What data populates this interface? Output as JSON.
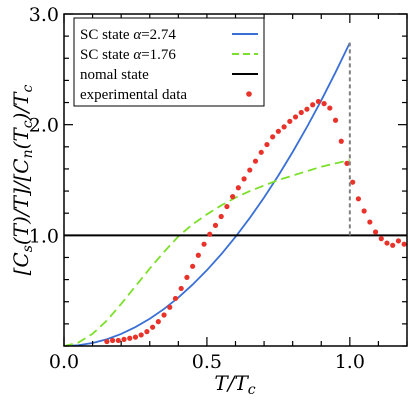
{
  "chart_data": {
    "type": "line",
    "xlabel": "T/T_c",
    "ylabel": "[C_s(T)/T]/[C_n(T_c)/T_c]",
    "xlim": [
      0,
      1.2
    ],
    "ylim": [
      0,
      3.0
    ],
    "x_ticks": [
      {
        "value": 0.0,
        "label": "0.0"
      },
      {
        "value": 0.5,
        "label": "0.5"
      },
      {
        "value": 1.0,
        "label": "1.0"
      }
    ],
    "y_ticks": [
      {
        "value": 1.0,
        "label": "1.0"
      },
      {
        "value": 2.0,
        "label": "2.0"
      },
      {
        "value": 3.0,
        "label": "3.0"
      }
    ],
    "legend_position": "top-left",
    "series": [
      {
        "name": "SC state α=2.74",
        "label_prefix": "SC state ",
        "label_param": "α",
        "label_value": "=2.74",
        "color": "#3a6fd8",
        "style": "solid",
        "x": [
          0,
          0.05,
          0.1,
          0.15,
          0.2,
          0.25,
          0.3,
          0.35,
          0.4,
          0.45,
          0.5,
          0.55,
          0.6,
          0.65,
          0.7,
          0.75,
          0.8,
          0.85,
          0.9,
          0.95,
          1.0
        ],
        "y": [
          0,
          0.007,
          0.027,
          0.061,
          0.109,
          0.171,
          0.246,
          0.335,
          0.438,
          0.555,
          0.685,
          0.829,
          0.986,
          1.157,
          1.342,
          1.541,
          1.753,
          1.979,
          2.219,
          2.473,
          2.74
        ]
      },
      {
        "name": "SC state α=1.76",
        "label_prefix": "SC state ",
        "label_param": "α",
        "label_value": "=1.76",
        "color": "#7be02a",
        "style": "dashed",
        "x": [
          0,
          0.05,
          0.1,
          0.15,
          0.2,
          0.25,
          0.3,
          0.35,
          0.4,
          0.45,
          0.5,
          0.55,
          0.6,
          0.65,
          0.7,
          0.75,
          0.8,
          0.85,
          0.9,
          0.95,
          1.0
        ],
        "y": [
          0,
          0.03,
          0.11,
          0.23,
          0.38,
          0.54,
          0.7,
          0.85,
          0.99,
          1.1,
          1.19,
          1.27,
          1.34,
          1.4,
          1.45,
          1.5,
          1.54,
          1.58,
          1.62,
          1.65,
          1.68
        ]
      },
      {
        "name": "nomal state",
        "color": "#000000",
        "style": "solid",
        "x": [
          0,
          1.2
        ],
        "y": [
          1.0,
          1.0
        ]
      },
      {
        "name": "experimental data",
        "color": "#e8322a",
        "style": "markers",
        "x": [
          0.15,
          0.17,
          0.19,
          0.21,
          0.23,
          0.25,
          0.27,
          0.29,
          0.31,
          0.33,
          0.35,
          0.37,
          0.39,
          0.41,
          0.43,
          0.45,
          0.47,
          0.49,
          0.51,
          0.53,
          0.55,
          0.57,
          0.59,
          0.61,
          0.63,
          0.65,
          0.67,
          0.69,
          0.71,
          0.73,
          0.75,
          0.77,
          0.79,
          0.81,
          0.83,
          0.85,
          0.87,
          0.89,
          0.91,
          0.93,
          0.95,
          0.97,
          0.99,
          1.01,
          1.03,
          1.05,
          1.07,
          1.09,
          1.11,
          1.13,
          1.15,
          1.17,
          1.19
        ],
        "y": [
          0.04,
          0.05,
          0.05,
          0.06,
          0.07,
          0.08,
          0.1,
          0.13,
          0.17,
          0.22,
          0.28,
          0.35,
          0.43,
          0.52,
          0.62,
          0.72,
          0.82,
          0.92,
          1.01,
          1.09,
          1.17,
          1.26,
          1.35,
          1.43,
          1.51,
          1.59,
          1.67,
          1.75,
          1.82,
          1.89,
          1.94,
          1.98,
          2.03,
          2.07,
          2.11,
          2.14,
          2.18,
          2.21,
          2.19,
          2.15,
          2.04,
          1.85,
          1.65,
          1.48,
          1.33,
          1.22,
          1.12,
          1.03,
          0.97,
          0.93,
          0.91,
          0.95,
          0.92
        ]
      }
    ],
    "annotations": [
      {
        "type": "vertical-dashed-line",
        "x": 1.0,
        "y_range": [
          1.0,
          2.74
        ],
        "color": "#7f7f7f"
      }
    ]
  }
}
